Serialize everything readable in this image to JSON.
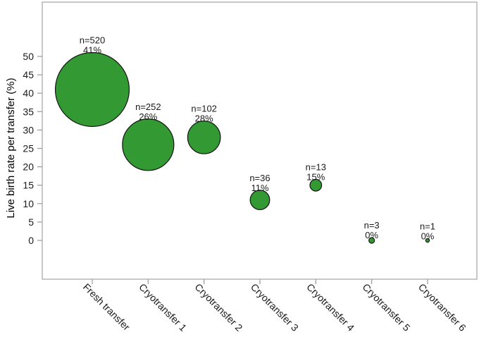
{
  "chart_data": {
    "type": "bubble",
    "title": "",
    "xlabel": "",
    "ylabel": "Live birth rate per transfer (%)",
    "yticks": [
      0,
      5,
      10,
      15,
      20,
      25,
      30,
      35,
      40,
      45,
      50
    ],
    "ylim": [
      0,
      50
    ],
    "grid": false,
    "legend": null,
    "size_encoding": "bubble area proportional to n",
    "categories": [
      "Fresh transfer",
      "Cryotransfer 1",
      "Cryotransfer 2",
      "Cryotransfer 3",
      "Cryotransfer 4",
      "Cryotransfer 5",
      "Cryotransfer 6"
    ],
    "points": [
      {
        "category": "Fresh transfer",
        "n": 520,
        "live_birth_rate_pct": 41,
        "label_n": "n=520",
        "label_pct": "41%"
      },
      {
        "category": "Cryotransfer 1",
        "n": 252,
        "live_birth_rate_pct": 26,
        "label_n": "n=252",
        "label_pct": "26%"
      },
      {
        "category": "Cryotransfer 2",
        "n": 102,
        "live_birth_rate_pct": 28,
        "label_n": "n=102",
        "label_pct": "28%"
      },
      {
        "category": "Cryotransfer 3",
        "n": 36,
        "live_birth_rate_pct": 11,
        "label_n": "n=36",
        "label_pct": "11%"
      },
      {
        "category": "Cryotransfer 4",
        "n": 13,
        "live_birth_rate_pct": 15,
        "label_n": "n=13",
        "label_pct": "15%"
      },
      {
        "category": "Cryotransfer 5",
        "n": 3,
        "live_birth_rate_pct": 0,
        "label_n": "n=3",
        "label_pct": "0%"
      },
      {
        "category": "Cryotransfer 6",
        "n": 1,
        "live_birth_rate_pct": 0,
        "label_n": "n=1",
        "label_pct": "0%"
      }
    ],
    "colors": {
      "bubble_fill": "#339a33",
      "bubble_stroke": "#141414",
      "plot_border": "#b5b5b5",
      "tick": "#999999",
      "text": "#1a1a1a",
      "background": "#ffffff"
    }
  }
}
